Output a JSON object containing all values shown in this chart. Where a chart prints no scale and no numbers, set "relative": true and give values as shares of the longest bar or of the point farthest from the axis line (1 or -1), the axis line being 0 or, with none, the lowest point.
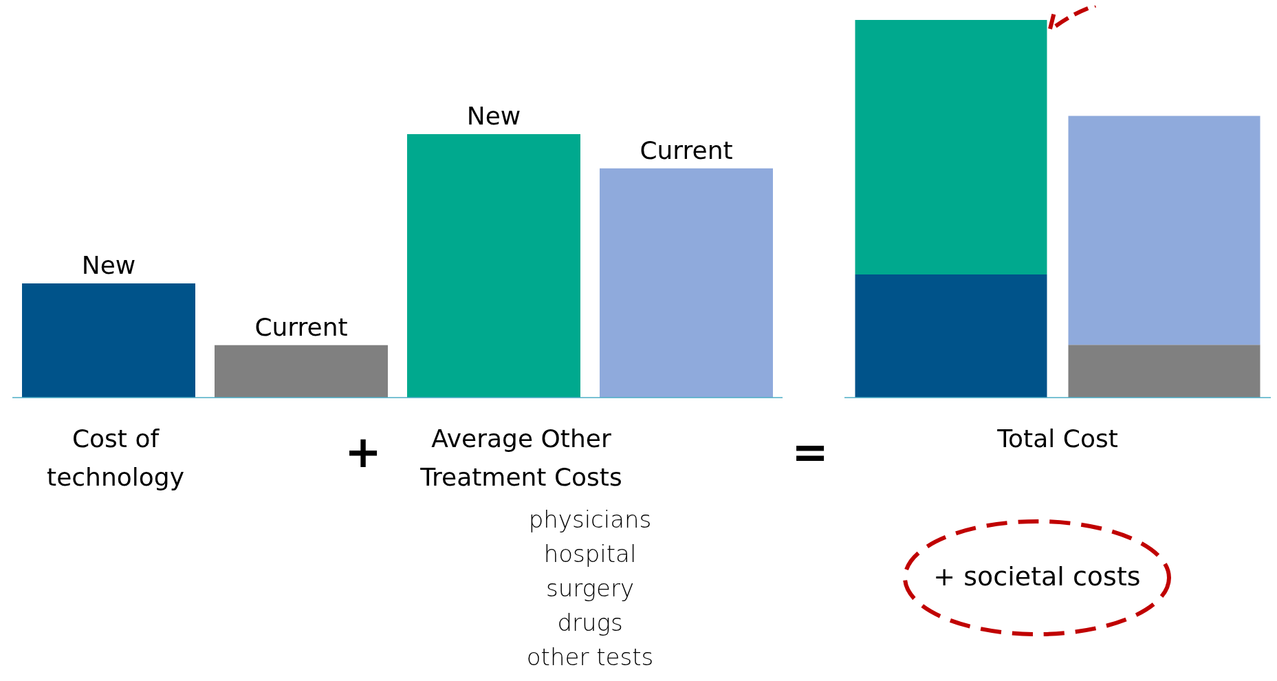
{
  "chart_data": [
    {
      "type": "bar",
      "relative": true,
      "categories": [
        "New",
        "Current"
      ],
      "xlabel": "Cost of technology",
      "series": [
        {
          "colors": [
            "#00538a",
            "#808080"
          ],
          "values": [
            1,
            0.46
          ]
        }
      ]
    },
    {
      "type": "bar",
      "relative": true,
      "categories": [
        "New",
        "Current"
      ],
      "xlabel": "Average Other Treatment Costs",
      "annotations": [
        "+",
        "physicians",
        "hospital",
        "surgery",
        "drugs",
        "other tests"
      ],
      "series": [
        {
          "colors": [
            "#00a98e",
            "#8faadc"
          ],
          "values": [
            1,
            0.87
          ]
        }
      ]
    },
    {
      "type": "bar",
      "relative": true,
      "stacked": true,
      "categories": [
        null,
        null
      ],
      "xlabel": "Total Cost",
      "annotations": [
        "=",
        "+ societal costs"
      ],
      "series": [
        {
          "colors": [
            "#00538a",
            "#808080"
          ],
          "values": [
            0.326,
            0.14
          ]
        },
        {
          "colors": [
            "#00a98e",
            "#8faadc"
          ],
          "values": [
            0.674,
            0.606
          ]
        }
      ]
    }
  ]
}
